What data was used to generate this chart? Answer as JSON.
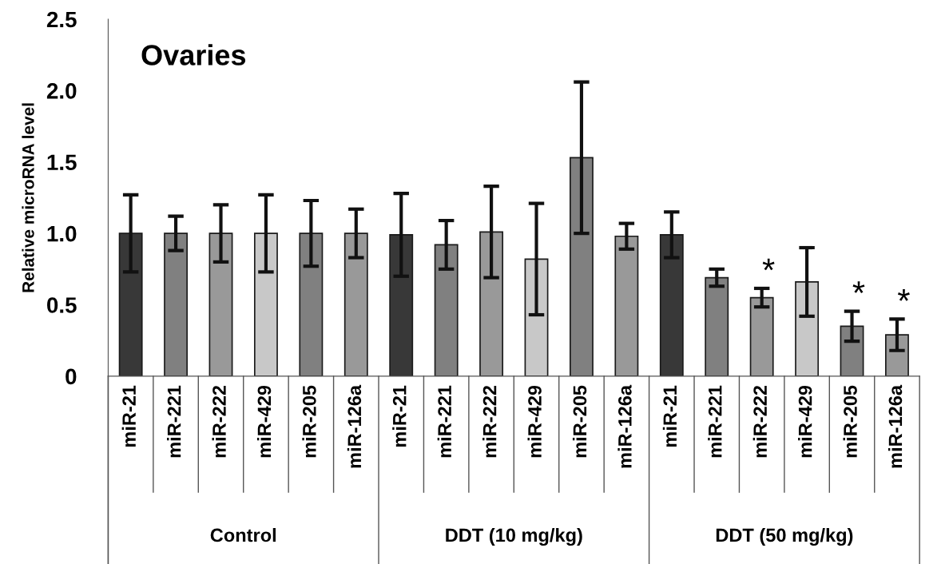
{
  "chart_data": {
    "type": "bar",
    "title": "Ovaries",
    "ylabel": "Relative microRNA level",
    "categories": [
      "miR-21",
      "miR-221",
      "miR-222",
      "miR-429",
      "miR-205",
      "miR-126a",
      "miR-21",
      "miR-221",
      "miR-222",
      "miR-429",
      "miR-205",
      "miR-126a",
      "miR-21",
      "miR-221",
      "miR-222",
      "miR-429",
      "miR-205",
      "miR-126a"
    ],
    "values": [
      1.0,
      1.0,
      1.0,
      1.0,
      1.0,
      1.0,
      0.99,
      0.92,
      1.01,
      0.82,
      1.53,
      0.98,
      0.99,
      0.69,
      0.55,
      0.66,
      0.35,
      0.29
    ],
    "errors": [
      0.27,
      0.12,
      0.2,
      0.27,
      0.23,
      0.17,
      0.29,
      0.17,
      0.32,
      0.39,
      0.53,
      0.09,
      0.16,
      0.06,
      0.065,
      0.24,
      0.105,
      0.11
    ],
    "colors": [
      "#383838",
      "#808080",
      "#999999",
      "#c8c8c8",
      "#808080",
      "#999999",
      "#383838",
      "#808080",
      "#999999",
      "#c8c8c8",
      "#808080",
      "#999999",
      "#383838",
      "#808080",
      "#999999",
      "#c8c8c8",
      "#808080",
      "#999999"
    ],
    "value_labels": [
      null,
      null,
      null,
      null,
      null,
      null,
      null,
      null,
      null,
      null,
      null,
      null,
      null,
      null,
      "*",
      null,
      "*",
      "*"
    ],
    "annotations": [
      "Control",
      "DDT (10 mg/kg)",
      "DDT (50 mg/kg)"
    ],
    "ylim": [
      0,
      2.5
    ],
    "yticks": [
      0,
      0.5,
      {
        "value": 1.0,
        "label": "1.0"
      },
      1.5,
      {
        "value": 2.0,
        "label": "2.0"
      },
      2.5
    ],
    "grid": false,
    "legend": false
  }
}
